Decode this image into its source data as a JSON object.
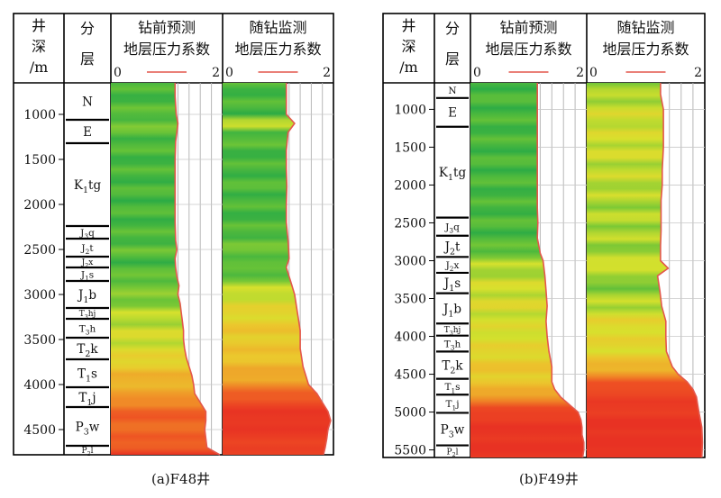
{
  "chart_data": [
    {
      "type": "area",
      "caption": "(a)F48井",
      "depth_header": [
        "井",
        "深",
        "/m"
      ],
      "strata_header": [
        "分",
        "层"
      ],
      "depth_ticks": [
        1000,
        1500,
        2000,
        2500,
        3000,
        3500,
        4000,
        4500
      ],
      "depth_range": [
        650,
        4780
      ],
      "strata": [
        {
          "label": "N",
          "sub": "",
          "suffix": "",
          "top": 650,
          "bottom": 1060
        },
        {
          "label": "E",
          "sub": "",
          "suffix": "",
          "top": 1060,
          "bottom": 1320
        },
        {
          "label": "K",
          "sub": "1",
          "suffix": "tg",
          "top": 1320,
          "bottom": 2240
        },
        {
          "label": "J",
          "sub": "3",
          "suffix": "q",
          "top": 2240,
          "bottom": 2380
        },
        {
          "label": "J",
          "sub": "2",
          "suffix": "t",
          "top": 2380,
          "bottom": 2580
        },
        {
          "label": "J",
          "sub": "2",
          "suffix": "x",
          "top": 2580,
          "bottom": 2700
        },
        {
          "label": "J",
          "sub": "1",
          "suffix": "s",
          "top": 2700,
          "bottom": 2850
        },
        {
          "label": "J",
          "sub": "1",
          "suffix": "b",
          "top": 2850,
          "bottom": 3150
        },
        {
          "label": "T",
          "sub": "3",
          "suffix": "hj",
          "top": 3150,
          "bottom": 3270
        },
        {
          "label": "T",
          "sub": "3",
          "suffix": "h",
          "top": 3270,
          "bottom": 3480
        },
        {
          "label": "T",
          "sub": "2",
          "suffix": "k",
          "top": 3480,
          "bottom": 3720
        },
        {
          "label": "T",
          "sub": "1",
          "suffix": "s",
          "top": 3720,
          "bottom": 4030
        },
        {
          "label": "T",
          "sub": "1",
          "suffix": "j",
          "top": 4030,
          "bottom": 4250
        },
        {
          "label": "P",
          "sub": "3",
          "suffix": "w",
          "top": 4250,
          "bottom": 4680
        },
        {
          "label": "P",
          "sub": "2",
          "suffix": "l",
          "top": 4680,
          "bottom": 4780
        }
      ],
      "tracks": [
        {
          "name": "钻前预测",
          "subtitle": "地层压力系数",
          "xlim": [
            0,
            2
          ],
          "depth": [
            650,
            800,
            1000,
            1100,
            1200,
            1300,
            1500,
            1700,
            1900,
            2000,
            2200,
            2400,
            2500,
            2600,
            2700,
            2800,
            2900,
            3000,
            3100,
            3200,
            3300,
            3400,
            3500,
            3600,
            3700,
            3800,
            3900,
            4000,
            4100,
            4200,
            4300,
            4400,
            4500,
            4600,
            4700,
            4780
          ],
          "value": [
            1.15,
            1.15,
            1.17,
            1.2,
            1.18,
            1.16,
            1.15,
            1.15,
            1.15,
            1.15,
            1.15,
            1.16,
            1.18,
            1.15,
            1.16,
            1.18,
            1.22,
            1.2,
            1.24,
            1.26,
            1.28,
            1.3,
            1.3,
            1.32,
            1.35,
            1.4,
            1.45,
            1.48,
            1.5,
            1.6,
            1.7,
            1.7,
            1.68,
            1.7,
            1.72,
            1.95
          ],
          "zones": [
            [
              1.0,
              1.2
            ],
            [
              1.2,
              1.35
            ],
            [
              1.35,
              1.5
            ],
            [
              1.5,
              1.8
            ]
          ]
        },
        {
          "name": "随钻监测",
          "subtitle": "地层压力系数",
          "xlim": [
            0,
            2
          ],
          "depth": [
            650,
            800,
            1000,
            1100,
            1200,
            1400,
            1600,
            1800,
            2000,
            2200,
            2400,
            2600,
            2700,
            2800,
            2900,
            3000,
            3200,
            3400,
            3600,
            3800,
            3900,
            4000,
            4100,
            4200,
            4300,
            4400,
            4500,
            4600,
            4700,
            4780
          ],
          "value": [
            1.15,
            1.15,
            1.15,
            1.3,
            1.18,
            1.15,
            1.15,
            1.16,
            1.15,
            1.15,
            1.18,
            1.2,
            1.15,
            1.2,
            1.25,
            1.3,
            1.35,
            1.4,
            1.4,
            1.45,
            1.5,
            1.55,
            1.7,
            1.8,
            1.9,
            1.95,
            1.9,
            1.88,
            1.85,
            1.82
          ],
          "zones": [
            [
              1.0,
              1.2
            ],
            [
              1.2,
              1.35
            ],
            [
              1.35,
              1.5
            ],
            [
              1.5,
              1.8
            ]
          ]
        }
      ]
    },
    {
      "type": "area",
      "caption": "(b)F49井",
      "depth_header": [
        "井",
        "深",
        "/m"
      ],
      "strata_header": [
        "分",
        "层"
      ],
      "depth_ticks": [
        1000,
        1500,
        2000,
        2500,
        3000,
        3500,
        4000,
        4500,
        5000,
        5500
      ],
      "depth_range": [
        650,
        5600
      ],
      "strata": [
        {
          "label": "N",
          "sub": "",
          "suffix": "",
          "top": 650,
          "bottom": 850
        },
        {
          "label": "E",
          "sub": "",
          "suffix": "",
          "top": 850,
          "bottom": 1230
        },
        {
          "label": "K",
          "sub": "1",
          "suffix": "tg",
          "top": 1230,
          "bottom": 2430
        },
        {
          "label": "J",
          "sub": "3",
          "suffix": "q",
          "top": 2430,
          "bottom": 2670
        },
        {
          "label": "J",
          "sub": "2",
          "suffix": "t",
          "top": 2670,
          "bottom": 2950
        },
        {
          "label": "J",
          "sub": "2",
          "suffix": "x",
          "top": 2950,
          "bottom": 3160
        },
        {
          "label": "J",
          "sub": "1",
          "suffix": "s",
          "top": 3160,
          "bottom": 3430
        },
        {
          "label": "J",
          "sub": "1",
          "suffix": "b",
          "top": 3430,
          "bottom": 3830
        },
        {
          "label": "T",
          "sub": "3",
          "suffix": "hj",
          "top": 3830,
          "bottom": 3990
        },
        {
          "label": "T",
          "sub": "3",
          "suffix": "h",
          "top": 3990,
          "bottom": 4200
        },
        {
          "label": "T",
          "sub": "2",
          "suffix": "k",
          "top": 4200,
          "bottom": 4560
        },
        {
          "label": "T",
          "sub": "1",
          "suffix": "s",
          "top": 4560,
          "bottom": 4770
        },
        {
          "label": "T",
          "sub": "1",
          "suffix": "j",
          "top": 4770,
          "bottom": 5010
        },
        {
          "label": "P",
          "sub": "3",
          "suffix": "w",
          "top": 5010,
          "bottom": 5440
        },
        {
          "label": "P",
          "sub": "2",
          "suffix": "l",
          "top": 5440,
          "bottom": 5600
        }
      ],
      "tracks": [
        {
          "name": "钻前预测",
          "subtitle": "地层压力系数",
          "xlim": [
            0,
            2
          ],
          "depth": [
            650,
            800,
            1000,
            1200,
            1500,
            1800,
            2000,
            2300,
            2500,
            2700,
            2900,
            3000,
            3200,
            3400,
            3600,
            3800,
            4000,
            4200,
            4400,
            4600,
            4700,
            4800,
            4900,
            5000,
            5100,
            5200,
            5300,
            5400,
            5500,
            5600
          ],
          "value": [
            1.15,
            1.15,
            1.15,
            1.15,
            1.15,
            1.15,
            1.15,
            1.15,
            1.16,
            1.15,
            1.2,
            1.25,
            1.28,
            1.3,
            1.32,
            1.3,
            1.32,
            1.35,
            1.4,
            1.4,
            1.45,
            1.55,
            1.7,
            1.85,
            1.9,
            1.92,
            1.92,
            1.95,
            1.95,
            1.93
          ],
          "zones": [
            [
              1.0,
              1.2
            ],
            [
              1.2,
              1.35
            ],
            [
              1.35,
              1.5
            ],
            [
              1.5,
              1.8
            ]
          ]
        },
        {
          "name": "随钻监测",
          "subtitle": "地层压力系数",
          "xlim": [
            0,
            2
          ],
          "depth": [
            650,
            800,
            1000,
            1200,
            1500,
            1800,
            2000,
            2200,
            2400,
            2600,
            2800,
            3000,
            3100,
            3200,
            3400,
            3600,
            3800,
            4000,
            4200,
            4400,
            4500,
            4600,
            4700,
            4800,
            4900,
            5000,
            5200,
            5400,
            5600
          ],
          "value": [
            1.25,
            1.25,
            1.3,
            1.3,
            1.3,
            1.28,
            1.28,
            1.26,
            1.26,
            1.26,
            1.25,
            1.25,
            1.38,
            1.2,
            1.24,
            1.27,
            1.34,
            1.34,
            1.35,
            1.45,
            1.55,
            1.7,
            1.8,
            1.86,
            1.88,
            1.9,
            1.95,
            1.96,
            1.95
          ],
          "zones": [
            [
              1.0,
              1.2
            ],
            [
              1.2,
              1.35
            ],
            [
              1.35,
              1.5
            ],
            [
              1.5,
              1.8
            ]
          ]
        }
      ]
    }
  ]
}
